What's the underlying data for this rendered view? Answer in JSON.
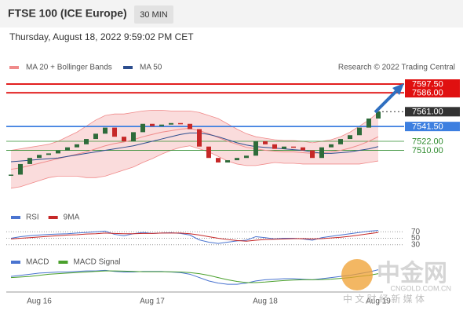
{
  "header": {
    "title": "FTSE 100 (ICE Europe)",
    "timeframe": "30 MIN",
    "timestamp": "Thursday, August 18, 2022 9:59:02 PM CET"
  },
  "chart_data": [
    {
      "type": "candlestick",
      "credit": "Research © 2022 Trading Central",
      "categories": [
        null,
        null,
        null,
        "Aug 16",
        null,
        null,
        null,
        null,
        null,
        null,
        null,
        null,
        null,
        null,
        null,
        "Aug 17",
        null,
        null,
        null,
        null,
        null,
        null,
        null,
        null,
        null,
        null,
        null,
        "Aug 18",
        null,
        null,
        null,
        null,
        null,
        null,
        null,
        null,
        null,
        null,
        null,
        "Aug 19"
      ],
      "close": [
        7478,
        7492,
        7500,
        7504,
        7506,
        7510,
        7514,
        7518,
        7525,
        7532,
        7540,
        7528,
        7522,
        7534,
        7545,
        7542,
        7544,
        7546,
        7545,
        7538,
        7515,
        7500,
        7494,
        7497,
        7500,
        7503,
        7522,
        7518,
        7512,
        7515,
        7514,
        7510,
        7500,
        7514,
        7518,
        7525,
        7530,
        7540,
        7552,
        7561
      ],
      "up_color": "#2e6b3a",
      "down_color": "#c62828",
      "series": [
        {
          "name": "MA 20 + Bollinger Bands",
          "color": "#f08a8a",
          "values": [
            7485,
            7487,
            7490,
            7493,
            7496,
            7499,
            7502,
            7505,
            7508,
            7512,
            7516,
            7519,
            7521,
            7524,
            7528,
            7531,
            7534,
            7536,
            7538,
            7539,
            7536,
            7532,
            7527,
            7522,
            7518,
            7514,
            7512,
            7510,
            7509,
            7508,
            7508,
            7507,
            7506,
            7507,
            7508,
            7510,
            7513,
            7517,
            7522,
            7528
          ],
          "upper": [
            7510,
            7512,
            7514,
            7516,
            7518,
            7522,
            7528,
            7534,
            7542,
            7550,
            7556,
            7558,
            7558,
            7560,
            7562,
            7563,
            7563,
            7562,
            7562,
            7562,
            7560,
            7556,
            7552,
            7545,
            7538,
            7532,
            7528,
            7526,
            7524,
            7523,
            7523,
            7522,
            7520,
            7522,
            7524,
            7528,
            7534,
            7542,
            7550,
            7560
          ],
          "lower": [
            7460,
            7462,
            7466,
            7470,
            7474,
            7476,
            7476,
            7476,
            7474,
            7474,
            7476,
            7480,
            7484,
            7488,
            7494,
            7499,
            7505,
            7510,
            7514,
            7516,
            7512,
            7508,
            7502,
            7496,
            7492,
            7490,
            7490,
            7492,
            7494,
            7493,
            7493,
            7492,
            7492,
            7492,
            7492,
            7492,
            7492,
            7492,
            7494,
            7496
          ]
        },
        {
          "name": "MA 50",
          "color": "#2c4d8e",
          "values": [
            7495,
            7496,
            7497,
            7498,
            7499,
            7500,
            7502,
            7504,
            7506,
            7508,
            7510,
            7512,
            7514,
            7516,
            7519,
            7522,
            7525,
            7528,
            7531,
            7533,
            7533,
            7531,
            7528,
            7524,
            7520,
            7517,
            7515,
            7514,
            7513,
            7512,
            7511,
            7510,
            7508,
            7506,
            7506,
            7507,
            7508,
            7510,
            7512,
            7515
          ]
        }
      ],
      "ylim": [
        7465,
        7610
      ],
      "levels": [
        {
          "value": 7597.5,
          "label": "7597.50",
          "color": "#e01010",
          "style": "solid",
          "box": true
        },
        {
          "value": 7586,
          "label": "7586.00",
          "color": "#e01010",
          "style": "solid",
          "box": true
        },
        {
          "value": 7561,
          "label": "7561.00",
          "color": "#333333",
          "style": "dotted",
          "box": true
        },
        {
          "value": 7541.5,
          "label": "7541.50",
          "color": "#3d7fe0",
          "style": "solid",
          "box": true
        },
        {
          "value": 7522,
          "label": "7522.00",
          "color": "#2e8b2e",
          "style": "solid",
          "box": false
        },
        {
          "value": 7510,
          "label": "7510.00",
          "color": "#2e8b2e",
          "style": "solid",
          "box": false
        }
      ]
    },
    {
      "type": "line",
      "ylim": [
        15,
        90
      ],
      "yticks": [
        70,
        50,
        30
      ],
      "series": [
        {
          "name": "RSI",
          "color": "#4a74d0",
          "values": [
            50,
            55,
            58,
            60,
            62,
            63,
            64,
            66,
            68,
            70,
            72,
            62,
            58,
            64,
            68,
            65,
            66,
            67,
            65,
            60,
            45,
            38,
            34,
            38,
            42,
            44,
            55,
            52,
            48,
            50,
            50,
            48,
            44,
            52,
            56,
            60,
            64,
            68,
            72,
            74
          ]
        },
        {
          "name": "9MA",
          "color": "#c62828",
          "values": [
            48,
            50,
            52,
            54,
            56,
            58,
            60,
            61,
            63,
            64,
            66,
            65,
            64,
            64,
            65,
            65,
            66,
            66,
            66,
            64,
            60,
            55,
            50,
            46,
            43,
            41,
            44,
            46,
            47,
            48,
            49,
            49,
            48,
            49,
            51,
            53,
            56,
            60,
            64,
            68
          ]
        }
      ]
    },
    {
      "type": "line",
      "ylim": [
        -12,
        12
      ],
      "series": [
        {
          "name": "MACD",
          "color": "#4a74d0",
          "values": [
            2,
            3,
            4,
            5,
            5.5,
            6,
            6,
            6.5,
            7,
            7,
            7.5,
            6.5,
            6,
            6,
            6.5,
            6.5,
            6.5,
            6,
            5.5,
            4,
            1,
            -2,
            -4,
            -5,
            -5,
            -4,
            -2,
            -1,
            -0.5,
            0,
            0,
            -0.5,
            -1,
            0,
            1,
            2,
            3,
            4.5,
            6,
            8
          ]
        },
        {
          "name": "MACD Signal",
          "color": "#4aa02c",
          "values": [
            1,
            1.5,
            2,
            3,
            4,
            4.5,
            5,
            5.5,
            6,
            6.5,
            7,
            7,
            6.8,
            6.5,
            6.3,
            6.3,
            6.3,
            6.2,
            6,
            5.5,
            4.5,
            3,
            1,
            -1,
            -2.5,
            -3.5,
            -3.5,
            -3,
            -2.3,
            -1.7,
            -1.2,
            -1,
            -1,
            -0.8,
            -0.4,
            0.3,
            1,
            2,
            3,
            4.5
          ]
        }
      ]
    }
  ],
  "watermark": {
    "logo": "中金网",
    "url": "CNGOLD.COM.CN",
    "tagline": "中 文 财 经 新 媒 体"
  }
}
